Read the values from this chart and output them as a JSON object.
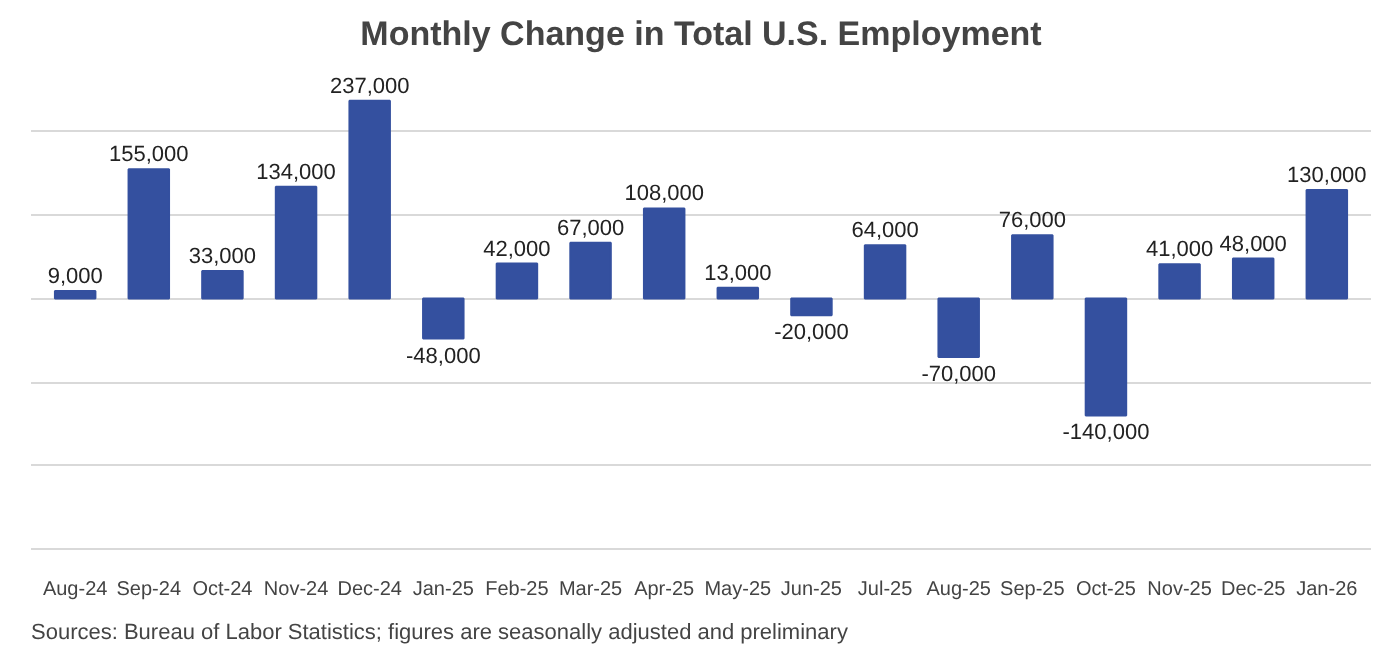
{
  "chart_data": {
    "type": "bar",
    "title": "Monthly Change in Total U.S. Employment",
    "categories": [
      "Aug-24",
      "Sep-24",
      "Oct-24",
      "Nov-24",
      "Dec-24",
      "Jan-25",
      "Feb-25",
      "Mar-25",
      "Apr-25",
      "May-25",
      "Jun-25",
      "Jul-25",
      "Aug-25",
      "Sep-25",
      "Oct-25",
      "Nov-25",
      "Dec-25",
      "Jan-26"
    ],
    "values": [
      9000,
      155000,
      33000,
      134000,
      237000,
      -48000,
      42000,
      67000,
      108000,
      13000,
      -20000,
      64000,
      -70000,
      76000,
      -140000,
      41000,
      48000,
      130000
    ],
    "value_labels": [
      "9,000",
      "155,000",
      "33,000",
      "134,000",
      "237,000",
      "-48,000",
      "42,000",
      "67,000",
      "108,000",
      "13,000",
      "-20,000",
      "64,000",
      "-70,000",
      "76,000",
      "-140,000",
      "41,000",
      "48,000",
      "130,000"
    ],
    "color": "#34509f",
    "grid": "y",
    "tick_labels": "x",
    "annotations": [
      "Sources: Bureau of Labor Statistics; figures are seasonally adjusted and preliminary"
    ]
  }
}
